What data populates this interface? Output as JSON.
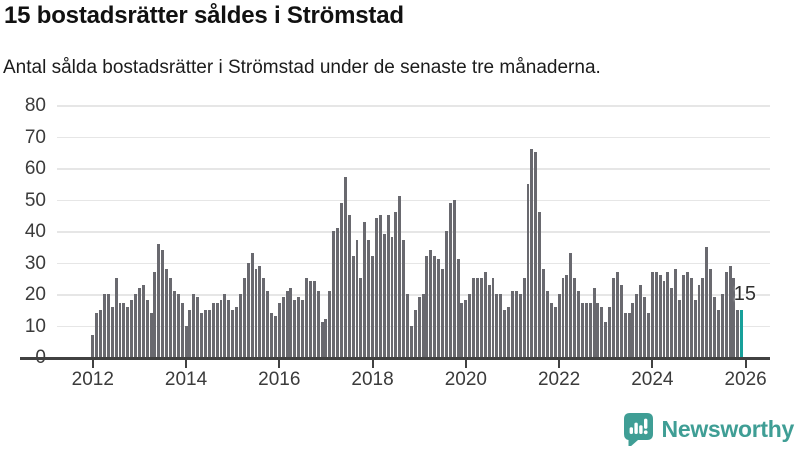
{
  "title": "15 bostadsrätter såldes i Strömstad",
  "subtitle": "Antal sålda bostadsrätter i Strömstad under de senaste tre månaderna.",
  "chart_data": {
    "type": "bar",
    "title": "15 bostadsrätter såldes i Strömstad",
    "subtitle": "Antal sålda bostadsrätter i Strömstad under de senaste tre månaderna.",
    "xlabel": "",
    "ylabel": "",
    "x_start": "2012-01",
    "x_frequency": "monthly",
    "x_tick_labels": [
      "2012",
      "2014",
      "2016",
      "2018",
      "2020",
      "2022",
      "2024",
      "2026"
    ],
    "y_tick_labels": [
      "0",
      "10",
      "20",
      "30",
      "40",
      "50",
      "60",
      "70",
      "80"
    ],
    "ylim": [
      0,
      80
    ],
    "grid": "horizontal",
    "legend": "none",
    "bar_color": "#69696f",
    "values": [
      7,
      14,
      15,
      20,
      20,
      16,
      25,
      17,
      17,
      16,
      18,
      20,
      22,
      23,
      18,
      14,
      27,
      36,
      34,
      28,
      25,
      21,
      20,
      17,
      10,
      15,
      20,
      19,
      14,
      15,
      15,
      17,
      17,
      18,
      20,
      18,
      15,
      16,
      20,
      25,
      30,
      33,
      28,
      29,
      25,
      21,
      14,
      13,
      17,
      19,
      21,
      22,
      18,
      19,
      18,
      25,
      24,
      24,
      21,
      11,
      12,
      21,
      40,
      41,
      49,
      57,
      45,
      32,
      37,
      25,
      43,
      37,
      32,
      44,
      45,
      39,
      45,
      38,
      46,
      51,
      37,
      20,
      10,
      15,
      19,
      20,
      32,
      34,
      32,
      31,
      28,
      40,
      49,
      50,
      31,
      17,
      18,
      20,
      25,
      25,
      25,
      27,
      23,
      25,
      20,
      20,
      15,
      16,
      21,
      21,
      20,
      25,
      55,
      66,
      65,
      46,
      28,
      21,
      17,
      16,
      20,
      25,
      26,
      33,
      25,
      21,
      17,
      17,
      17,
      22,
      17,
      16,
      11,
      16,
      25,
      27,
      23,
      14,
      14,
      17,
      20,
      23,
      19,
      14,
      27,
      27,
      26,
      24,
      27,
      22,
      28,
      18,
      26,
      27,
      25,
      18,
      23,
      25,
      35,
      28,
      19,
      15,
      20,
      27,
      29,
      25,
      15,
      15
    ],
    "highlight": {
      "index_from_end": 1,
      "value": 15,
      "label": "15",
      "color": "#17a09a"
    }
  },
  "branding": {
    "logo_text": "Newsworthy",
    "logo_color": "#3f9e95"
  }
}
